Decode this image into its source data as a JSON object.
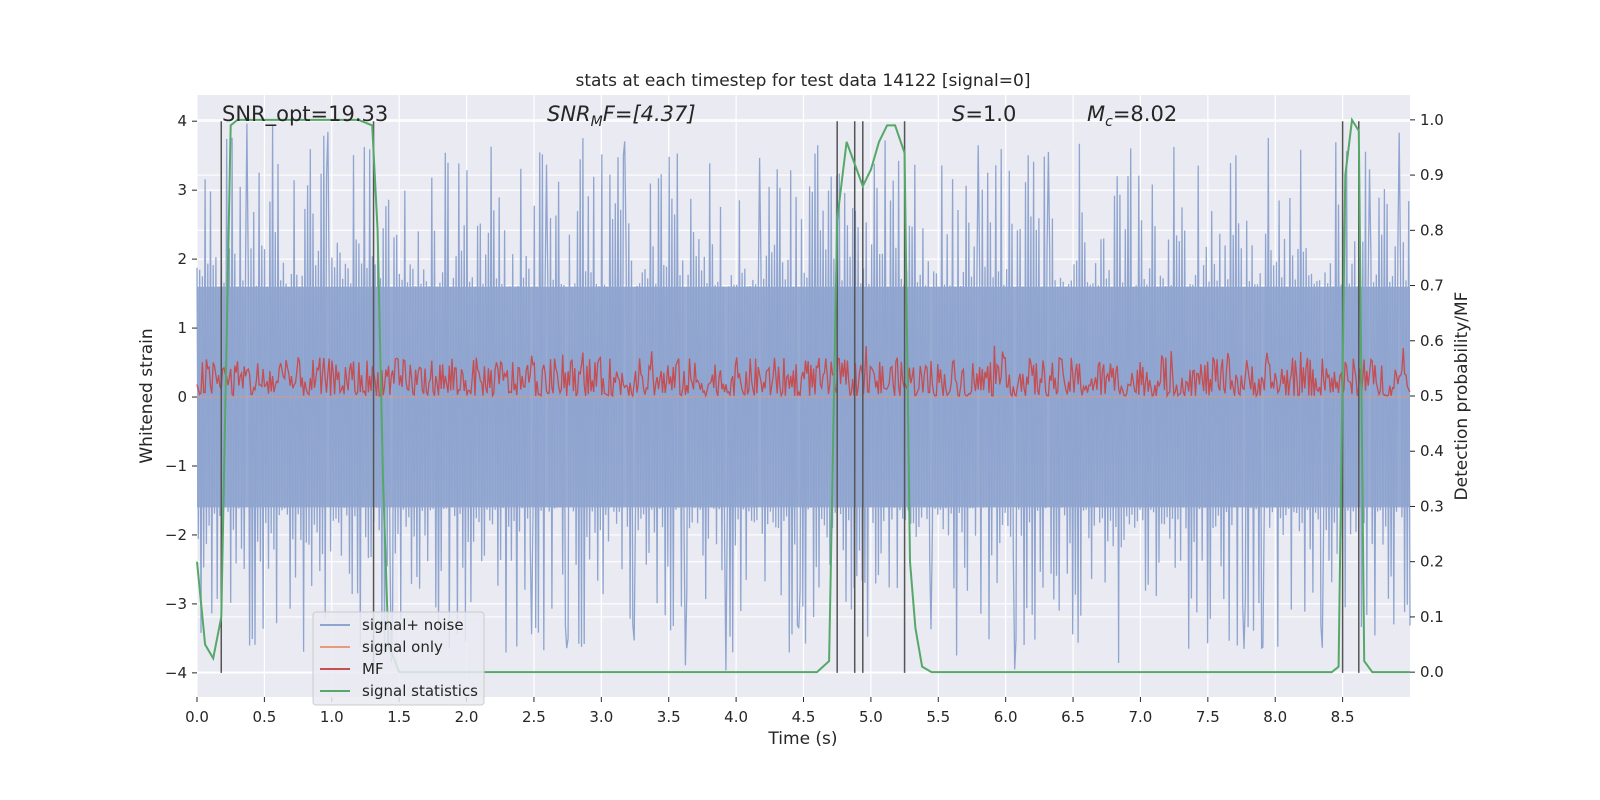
{
  "chart_data": {
    "type": "line",
    "title": "stats at each timestep for test data 14122 [signal=0]",
    "xlabel": "Time (s)",
    "ylabel": "Whitened strain",
    "y2label": "Detection probability/MF",
    "xlim": [
      0.0,
      9.0
    ],
    "ylim": [
      -4.35,
      4.38
    ],
    "y2lim": [
      -0.045,
      1.045
    ],
    "xticks": [
      0.0,
      0.5,
      1.0,
      1.5,
      2.0,
      2.5,
      3.0,
      3.5,
      4.0,
      4.5,
      5.0,
      5.5,
      6.0,
      6.5,
      7.0,
      7.5,
      8.0,
      8.5
    ],
    "xtick_labels": [
      "0.0",
      "0.5",
      "1.0",
      "1.5",
      "2.0",
      "2.5",
      "3.0",
      "3.5",
      "4.0",
      "4.5",
      "5.0",
      "5.5",
      "6.0",
      "6.5",
      "7.0",
      "7.5",
      "8.0",
      "8.5"
    ],
    "yticks": [
      -4,
      -3,
      -2,
      -1,
      0,
      1,
      2,
      3,
      4
    ],
    "ytick_labels": [
      "−4",
      "−3",
      "−2",
      "−1",
      "0",
      "1",
      "2",
      "3",
      "4"
    ],
    "y2ticks": [
      0.0,
      0.1,
      0.2,
      0.3,
      0.4,
      0.5,
      0.6,
      0.7,
      0.8,
      0.9,
      1.0
    ],
    "y2tick_labels": [
      "0.0",
      "0.1",
      "0.2",
      "0.3",
      "0.4",
      "0.5",
      "0.6",
      "0.7",
      "0.8",
      "0.9",
      "1.0"
    ],
    "annotations": {
      "snr_opt": "SNR_opt=19.33",
      "snr_mf_sym": "SNR",
      "snr_mf_sub": "M",
      "snr_mf_rest": "F=[4.37]",
      "s_sym": "S",
      "s_rest": "=1.0",
      "mc_sym": "M",
      "mc_sub": "c",
      "mc_rest": "=8.02"
    },
    "legend": {
      "position": "lower-left",
      "entries": [
        "signal+ noise",
        "signal only",
        "MF",
        "signal statistics"
      ]
    },
    "colors": {
      "noise": "#8fa5cf",
      "signal_only": "#e89a7a",
      "mf": "#c44e52",
      "stats": "#55a868",
      "vlines": "#555555",
      "background": "#eaeaf2",
      "grid": "#ffffff"
    },
    "series": [
      {
        "name": "signal+ noise",
        "axis": "left",
        "description_range": [
          -4.0,
          4.0
        ],
        "n_points": 900
      },
      {
        "name": "signal only",
        "axis": "left",
        "x": [
          0.0,
          9.0
        ],
        "values": [
          0.0,
          0.0
        ]
      },
      {
        "name": "MF",
        "axis": "right",
        "range": [
          0.5,
          0.62
        ],
        "n_points": 900
      },
      {
        "name": "signal statistics",
        "axis": "right",
        "x": [
          0.0,
          0.06,
          0.12,
          0.18,
          0.25,
          0.3,
          0.4,
          1.0,
          1.2,
          1.3,
          1.34,
          1.38,
          1.42,
          1.5,
          2.0,
          3.0,
          4.0,
          4.6,
          4.69,
          4.75,
          4.82,
          4.88,
          4.94,
          5.0,
          5.06,
          5.12,
          5.18,
          5.25,
          5.29,
          5.33,
          5.38,
          5.45,
          6.0,
          7.0,
          8.0,
          8.42,
          8.47,
          8.52,
          8.57,
          8.62,
          8.66,
          8.72,
          9.0
        ],
        "values": [
          0.2,
          0.05,
          0.025,
          0.1,
          0.99,
          1.0,
          1.0,
          1.0,
          1.0,
          0.99,
          0.8,
          0.35,
          0.05,
          0.0,
          0.0,
          0.0,
          0.0,
          0.0,
          0.02,
          0.82,
          0.96,
          0.92,
          0.88,
          0.91,
          0.96,
          0.99,
          0.99,
          0.94,
          0.2,
          0.08,
          0.01,
          0.0,
          0.0,
          0.0,
          0.0,
          0.0,
          0.01,
          0.9,
          1.0,
          0.98,
          0.02,
          0.0,
          0.0
        ]
      }
    ],
    "vlines": [
      0.18,
      1.31,
      4.75,
      4.88,
      4.94,
      5.25,
      8.5,
      8.62
    ]
  }
}
